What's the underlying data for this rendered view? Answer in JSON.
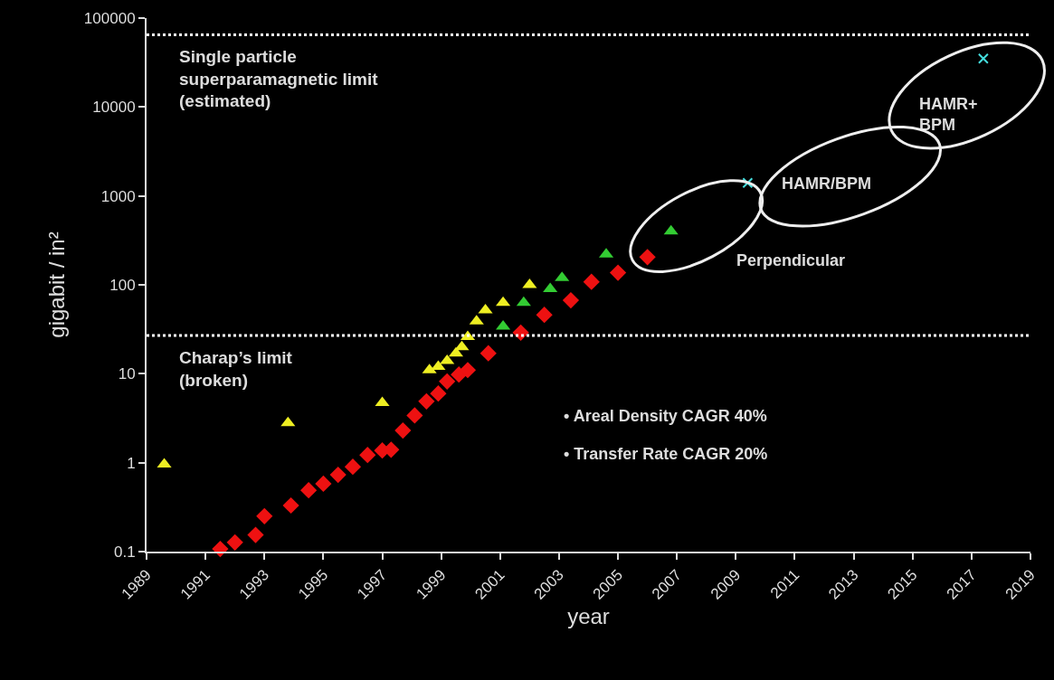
{
  "chart_data": {
    "type": "scatter",
    "xlabel": "year",
    "ylabel": "gigabit / in²",
    "log": "y",
    "grid": false,
    "xlim": [
      1989,
      2019
    ],
    "xticks": [
      1989,
      1991,
      1993,
      1995,
      1997,
      1999,
      2001,
      2003,
      2005,
      2007,
      2009,
      2011,
      2013,
      2015,
      2017,
      2019
    ],
    "ylim": [
      0.1,
      100000
    ],
    "yticks": [
      0.1,
      1,
      10,
      100,
      1000,
      10000,
      100000
    ],
    "series": [
      {
        "color": "#ee1111",
        "marker": "diamond",
        "x": [
          1991.5,
          1992.0,
          1992.7,
          1993.0,
          1993.9,
          1994.5,
          1995.0,
          1995.5,
          1996.0,
          1996.5,
          1997.0,
          1997.3,
          1997.7,
          1998.1,
          1998.5,
          1998.9,
          1999.2,
          1999.6,
          1999.9,
          2000.6,
          2001.7,
          2002.5,
          2003.4,
          2004.1,
          2005.0,
          2006.0
        ],
        "values": [
          0.107,
          0.127,
          0.154,
          0.25,
          0.33,
          0.49,
          0.58,
          0.73,
          0.9,
          1.22,
          1.37,
          1.4,
          2.3,
          3.4,
          4.9,
          6.0,
          8.2,
          9.8,
          11,
          17,
          29,
          46,
          67,
          108,
          137,
          205
        ]
      },
      {
        "color": "#eeee22",
        "marker": "triangle",
        "x": [
          1989.6,
          1993.8,
          1997.0,
          1998.6,
          1998.9,
          1999.2,
          1999.5,
          1999.7,
          1999.9,
          2000.2,
          2000.5,
          2001.1,
          2002.0
        ],
        "values": [
          0.96,
          2.8,
          4.7,
          11,
          12,
          14,
          17,
          20,
          26,
          39,
          52,
          63,
          100
        ]
      },
      {
        "color": "#33cc33",
        "marker": "triangle",
        "x": [
          2001.1,
          2001.8,
          2002.7,
          2003.1,
          2004.6,
          2006.8
        ],
        "values": [
          34,
          63,
          90,
          120,
          220,
          400
        ]
      },
      {
        "color": "#44dddd",
        "marker": "cross",
        "x": [
          2009.4,
          2017.4
        ],
        "values": [
          1400,
          35000
        ]
      }
    ],
    "ref_lines": [
      {
        "axis": "y",
        "value": 65000,
        "label": "Single particle\nsuperparamagnetic limit\n(estimated)",
        "color": "#ffffff",
        "line_style": "dotted"
      },
      {
        "axis": "y",
        "value": 27,
        "label": "Charap’s limit\n(broken)",
        "color": "#ffffff",
        "line_style": "dotted"
      }
    ],
    "annotations": [
      "Perpendicular",
      "HAMR/BPM",
      "HAMR+\nBPM",
      "• Areal Density CAGR 40%",
      "• Transfer Rate CAGR 20%"
    ]
  }
}
